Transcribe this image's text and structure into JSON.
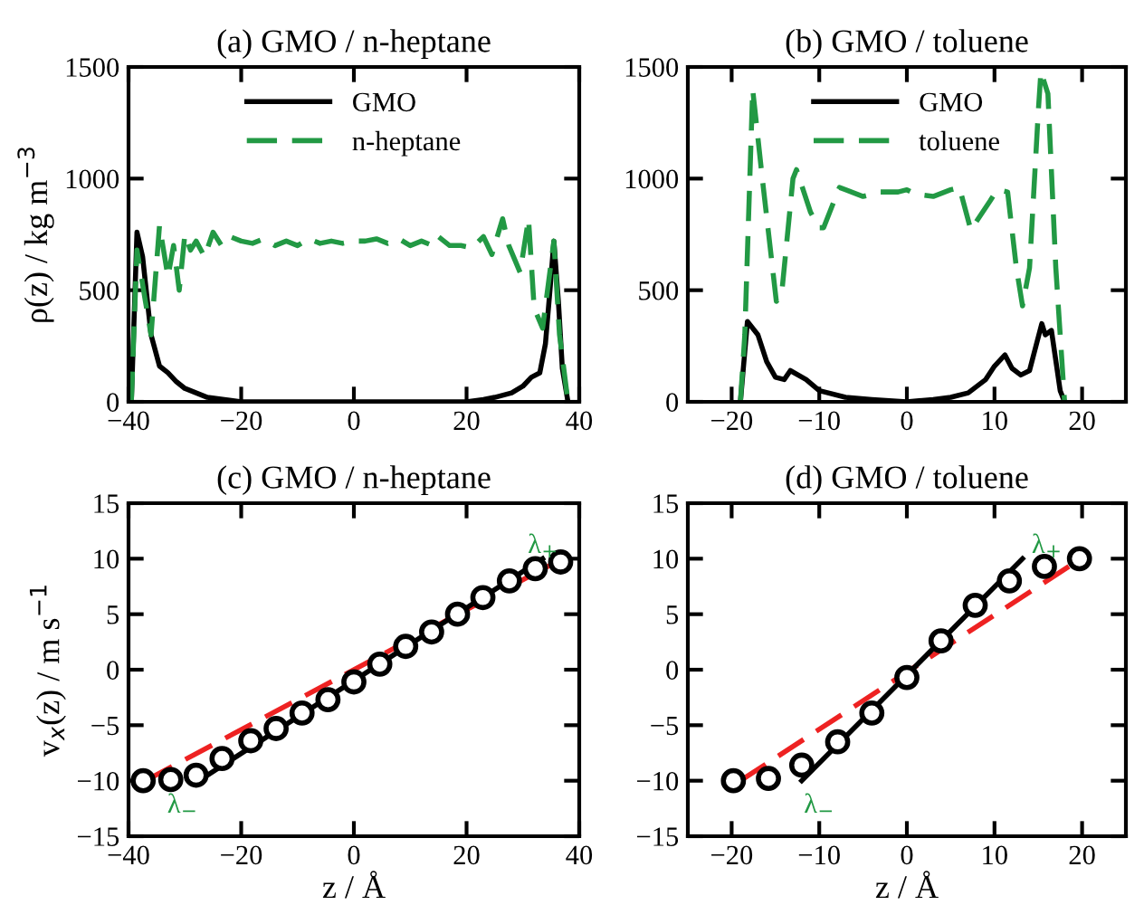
{
  "chart_data": [
    {
      "type": "line",
      "title": "(a) GMO / n-heptane",
      "ylabel": "ρ(z) / kg m$^{−3}$",
      "xlim": [
        -40,
        40
      ],
      "xticks": [
        -40,
        -20,
        0,
        20,
        40
      ],
      "ylim": [
        0,
        1500
      ],
      "yticks": [
        0,
        500,
        1000,
        1500
      ],
      "legend": "top",
      "series": [
        {
          "name": "GMO",
          "color": "#000000",
          "line_style": "solid",
          "x": [
            -39.5,
            -38.5,
            -37.5,
            -36,
            -34.5,
            -33,
            -31.5,
            -30,
            -28,
            -26,
            -23,
            -20,
            -15,
            -10,
            0,
            10,
            15,
            20,
            23,
            25,
            28,
            30,
            31.5,
            33,
            34,
            34.8,
            35.5,
            36.3,
            37,
            38
          ],
          "values": [
            0,
            760,
            650,
            300,
            160,
            130,
            90,
            60,
            40,
            20,
            10,
            0,
            0,
            0,
            0,
            0,
            0,
            0,
            10,
            20,
            40,
            70,
            110,
            130,
            260,
            500,
            720,
            450,
            150,
            0
          ]
        },
        {
          "name": "n-heptane",
          "color": "#229944",
          "line_style": "dashed",
          "x": [
            -39.5,
            -38.5,
            -37,
            -36,
            -34.5,
            -33,
            -32,
            -31,
            -30,
            -29,
            -28,
            -26.5,
            -25,
            -23.5,
            -22,
            -20,
            -18,
            -16,
            -14,
            -12,
            -10,
            -8,
            -6,
            -4,
            -2,
            0,
            2,
            4,
            6,
            8,
            10,
            12,
            14,
            15,
            17,
            19,
            21,
            23,
            24.5,
            26.4,
            27.5,
            28.5,
            29.5,
            31,
            32,
            33.5,
            35.5,
            36.5,
            38
          ],
          "values": [
            0,
            680,
            450,
            300,
            790,
            560,
            700,
            500,
            750,
            680,
            720,
            650,
            760,
            700,
            740,
            720,
            710,
            730,
            700,
            720,
            700,
            730,
            710,
            720,
            710,
            720,
            720,
            730,
            710,
            730,
            700,
            720,
            700,
            740,
            700,
            700,
            690,
            740,
            660,
            820,
            700,
            640,
            580,
            820,
            420,
            330,
            720,
            300,
            0
          ]
        }
      ]
    },
    {
      "type": "line",
      "title": "(b) GMO / toluene",
      "xlim": [
        -25,
        25
      ],
      "xticks": [
        -20,
        -10,
        0,
        10,
        20
      ],
      "ylim": [
        0,
        1500
      ],
      "yticks": [
        0,
        500,
        1000,
        1500
      ],
      "legend": "top",
      "series": [
        {
          "name": "GMO",
          "color": "#000000",
          "line_style": "solid",
          "x": [
            -19,
            -18.2,
            -17,
            -16,
            -15,
            -14,
            -13.3,
            -11.5,
            -10,
            -7,
            -4,
            0,
            3,
            5,
            7,
            9,
            10,
            11.2,
            12,
            13,
            14,
            15.4,
            15.8,
            16.5,
            17.5,
            18
          ],
          "values": [
            0,
            360,
            300,
            180,
            110,
            100,
            140,
            100,
            50,
            20,
            10,
            0,
            10,
            20,
            40,
            100,
            160,
            210,
            150,
            120,
            140,
            350,
            300,
            320,
            50,
            0
          ]
        },
        {
          "name": "toluene",
          "color": "#229944",
          "line_style": "dashed",
          "x": [
            -19,
            -18.5,
            -17.6,
            -16.5,
            -14.9,
            -14.3,
            -13,
            -12.6,
            -11,
            -10,
            -9.5,
            -7.7,
            -7,
            -5,
            -3,
            -1,
            0,
            1,
            3,
            5,
            6,
            7.3,
            9.5,
            10.3,
            11.5,
            12.5,
            13.2,
            14,
            15,
            15.3,
            16.1,
            17,
            18
          ],
          "values": [
            0,
            300,
            1400,
            1000,
            450,
            480,
            1000,
            1040,
            850,
            780,
            780,
            960,
            950,
            920,
            940,
            940,
            950,
            930,
            920,
            950,
            960,
            770,
            900,
            950,
            940,
            600,
            430,
            600,
            1300,
            1480,
            1380,
            600,
            0
          ]
        }
      ]
    },
    {
      "type": "line",
      "title": "(c) GMO / n-heptane",
      "xlabel": "z / Å",
      "ylabel": "v$_{x}$(z) / m s$^{−1}$",
      "xlim": [
        -40,
        40
      ],
      "xticks": [
        -40,
        -20,
        0,
        20,
        40
      ],
      "ylim": [
        -15,
        15
      ],
      "yticks": [
        -15,
        -10,
        -5,
        0,
        5,
        10,
        15
      ],
      "annotations": [
        "λ$_{+}$",
        "λ$_{−}$"
      ],
      "series": [
        {
          "type": "line",
          "color": "#ee2222",
          "line_style": "dashed",
          "x": [
            -37,
            37
          ],
          "values": [
            -10,
            10
          ]
        },
        {
          "type": "line",
          "color": "#000000",
          "line_style": "solid",
          "x": [
            -27.5,
            33.5
          ],
          "values": [
            -10,
            10
          ]
        },
        {
          "type": "scatter",
          "color": "#000000",
          "marker": "circle",
          "x": [
            -37.4,
            -32.5,
            -28,
            -23.4,
            -18.3,
            -13.8,
            -9.2,
            -4.6,
            0,
            4.6,
            9.2,
            13.8,
            18.4,
            22.9,
            27.6,
            32.2,
            36.7
          ],
          "values": [
            -10,
            -9.9,
            -9.5,
            -8,
            -6.4,
            -5.3,
            -3.9,
            -2.7,
            -1.1,
            0.5,
            2.1,
            3.4,
            5,
            6.5,
            8,
            9.1,
            9.7
          ]
        }
      ]
    },
    {
      "type": "line",
      "title": "(d) GMO / toluene",
      "xlabel": "z / Å",
      "xlim": [
        -25,
        25
      ],
      "xticks": [
        -20,
        -10,
        0,
        10,
        20
      ],
      "ylim": [
        -15,
        15
      ],
      "yticks": [
        -15,
        -10,
        -5,
        0,
        5,
        10,
        15
      ],
      "annotations": [
        "λ$_{+}$",
        "λ$_{−}$"
      ],
      "series": [
        {
          "type": "line",
          "color": "#ee2222",
          "line_style": "dashed",
          "x": [
            -19,
            18.5
          ],
          "values": [
            -10,
            9.3
          ]
        },
        {
          "type": "line",
          "color": "#000000",
          "line_style": "solid",
          "x": [
            -12,
            13.2
          ],
          "values": [
            -10,
            10
          ]
        },
        {
          "type": "scatter",
          "color": "#000000",
          "marker": "circle",
          "x": [
            -19.8,
            -15.8,
            -12,
            -7.9,
            -4,
            0,
            3.9,
            7.8,
            11.7,
            15.7,
            19.7
          ],
          "values": [
            -10,
            -9.8,
            -8.6,
            -6.5,
            -3.9,
            -0.7,
            2.6,
            5.8,
            8,
            9.3,
            10
          ]
        }
      ]
    }
  ]
}
